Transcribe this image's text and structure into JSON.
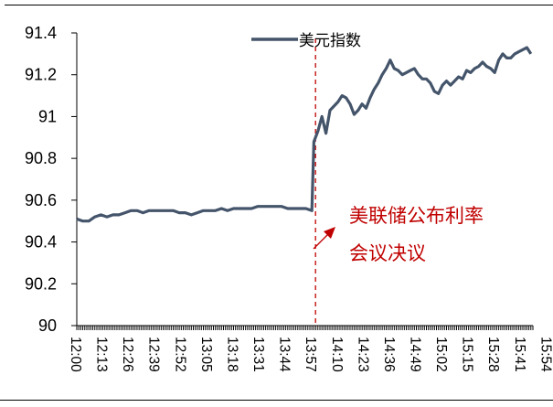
{
  "chart_data": {
    "type": "line",
    "title": "",
    "xlabel": "",
    "ylabel": "",
    "ylim": [
      90,
      91.4
    ],
    "yticks": [
      "90",
      "90.2",
      "90.4",
      "90.6",
      "90.8",
      "91",
      "91.2",
      "91.4"
    ],
    "xticks": [
      "12:00",
      "12:13",
      "12:26",
      "12:39",
      "12:52",
      "13:05",
      "13:18",
      "13:31",
      "13:44",
      "13:57",
      "14:10",
      "14:23",
      "14:36",
      "14:49",
      "15:02",
      "15:15",
      "15:28",
      "15:41",
      "15:54"
    ],
    "grid": false,
    "legend_position": "top-center",
    "series": [
      {
        "name": "美元指数",
        "color": "#44546a",
        "points": [
          [
            "12:00",
            90.51
          ],
          [
            "12:03",
            90.5
          ],
          [
            "12:06",
            90.5
          ],
          [
            "12:09",
            90.52
          ],
          [
            "12:12",
            90.53
          ],
          [
            "12:15",
            90.52
          ],
          [
            "12:18",
            90.53
          ],
          [
            "12:21",
            90.53
          ],
          [
            "12:24",
            90.54
          ],
          [
            "12:27",
            90.55
          ],
          [
            "12:30",
            90.55
          ],
          [
            "12:33",
            90.54
          ],
          [
            "12:36",
            90.55
          ],
          [
            "12:39",
            90.55
          ],
          [
            "12:42",
            90.55
          ],
          [
            "12:45",
            90.55
          ],
          [
            "12:48",
            90.55
          ],
          [
            "12:51",
            90.54
          ],
          [
            "12:54",
            90.54
          ],
          [
            "12:57",
            90.53
          ],
          [
            "13:00",
            90.54
          ],
          [
            "13:03",
            90.55
          ],
          [
            "13:06",
            90.55
          ],
          [
            "13:09",
            90.55
          ],
          [
            "13:12",
            90.56
          ],
          [
            "13:15",
            90.55
          ],
          [
            "13:18",
            90.56
          ],
          [
            "13:21",
            90.56
          ],
          [
            "13:24",
            90.56
          ],
          [
            "13:27",
            90.56
          ],
          [
            "13:30",
            90.57
          ],
          [
            "13:33",
            90.57
          ],
          [
            "13:36",
            90.57
          ],
          [
            "13:39",
            90.57
          ],
          [
            "13:42",
            90.57
          ],
          [
            "13:45",
            90.56
          ],
          [
            "13:48",
            90.56
          ],
          [
            "13:51",
            90.56
          ],
          [
            "13:54",
            90.56
          ],
          [
            "13:57",
            90.55
          ],
          [
            "13:58",
            90.88
          ],
          [
            "14:00",
            90.93
          ],
          [
            "14:02",
            91.0
          ],
          [
            "14:04",
            90.92
          ],
          [
            "14:06",
            91.03
          ],
          [
            "14:08",
            91.05
          ],
          [
            "14:10",
            91.07
          ],
          [
            "14:12",
            91.1
          ],
          [
            "14:14",
            91.09
          ],
          [
            "14:16",
            91.06
          ],
          [
            "14:18",
            91.01
          ],
          [
            "14:20",
            91.03
          ],
          [
            "14:22",
            91.06
          ],
          [
            "14:24",
            91.04
          ],
          [
            "14:26",
            91.09
          ],
          [
            "14:28",
            91.13
          ],
          [
            "14:30",
            91.16
          ],
          [
            "14:32",
            91.2
          ],
          [
            "14:34",
            91.23
          ],
          [
            "14:36",
            91.27
          ],
          [
            "14:38",
            91.23
          ],
          [
            "14:40",
            91.22
          ],
          [
            "14:42",
            91.2
          ],
          [
            "14:44",
            91.21
          ],
          [
            "14:46",
            91.22
          ],
          [
            "14:48",
            91.23
          ],
          [
            "14:50",
            91.2
          ],
          [
            "14:52",
            91.18
          ],
          [
            "14:54",
            91.18
          ],
          [
            "14:56",
            91.16
          ],
          [
            "14:58",
            91.12
          ],
          [
            "15:00",
            91.11
          ],
          [
            "15:02",
            91.15
          ],
          [
            "15:04",
            91.17
          ],
          [
            "15:06",
            91.15
          ],
          [
            "15:08",
            91.17
          ],
          [
            "15:10",
            91.19
          ],
          [
            "15:12",
            91.18
          ],
          [
            "15:14",
            91.22
          ],
          [
            "15:16",
            91.21
          ],
          [
            "15:18",
            91.23
          ],
          [
            "15:20",
            91.24
          ],
          [
            "15:22",
            91.26
          ],
          [
            "15:24",
            91.24
          ],
          [
            "15:26",
            91.23
          ],
          [
            "15:28",
            91.21
          ],
          [
            "15:30",
            91.27
          ],
          [
            "15:32",
            91.3
          ],
          [
            "15:34",
            91.28
          ],
          [
            "15:36",
            91.28
          ],
          [
            "15:38",
            91.3
          ],
          [
            "15:40",
            91.31
          ],
          [
            "15:42",
            91.32
          ],
          [
            "15:44",
            91.33
          ],
          [
            "15:46",
            91.3
          ]
        ]
      }
    ],
    "annotations": [
      {
        "type": "vline",
        "x": "13:57",
        "color": "#c00000",
        "style": "dashed"
      },
      {
        "type": "text",
        "text": [
          "美联储公布利率",
          "会议决议"
        ],
        "color": "#c00000"
      },
      {
        "type": "arrow",
        "color": "#c00000",
        "direction": "up-right"
      }
    ]
  }
}
